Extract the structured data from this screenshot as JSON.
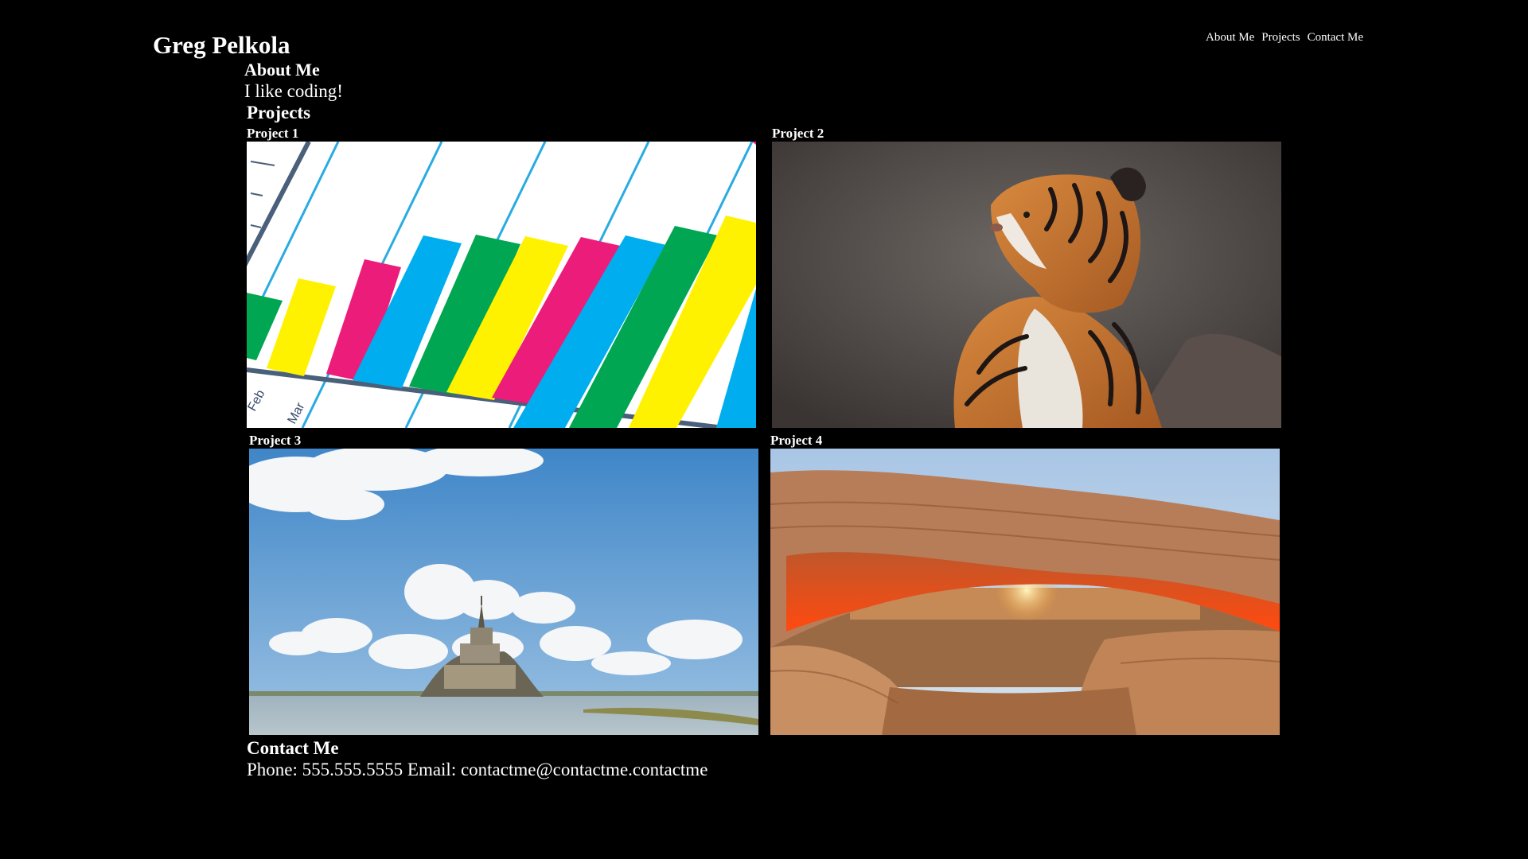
{
  "header": {
    "title": "Greg Pelkola",
    "nav": [
      "About Me",
      "Projects",
      "Contact Me"
    ]
  },
  "about": {
    "heading": "About Me",
    "text": "I like coding!"
  },
  "projects": {
    "heading": "Projects",
    "items": [
      {
        "label": "Project 1",
        "image": "bar-chart-graphic"
      },
      {
        "label": "Project 2",
        "image": "tiger-photo"
      },
      {
        "label": "Project 3",
        "image": "island-castle-photo"
      },
      {
        "label": "Project 4",
        "image": "desert-arch-sunrise-photo"
      }
    ]
  },
  "contact": {
    "heading": "Contact Me",
    "text": "Phone: 555.555.5555 Email: contactme@contactme.contactme"
  },
  "graphics": {
    "chart_month_labels": [
      "Feb",
      "Mar"
    ],
    "bar_colors": [
      "#00a651",
      "#fff200",
      "#ec1c7a",
      "#00aeef"
    ]
  }
}
